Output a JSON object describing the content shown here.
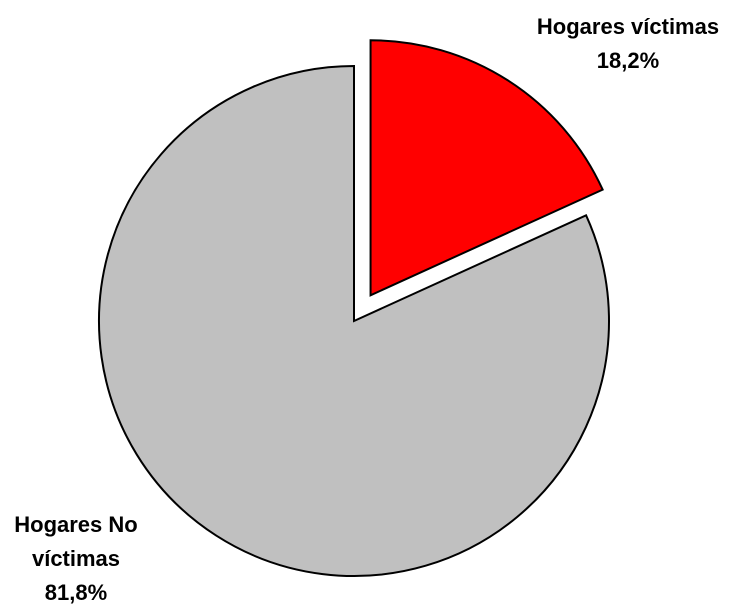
{
  "chart_data": {
    "type": "pie",
    "categories": [
      "Hogares víctimas",
      "Hogares No víctimas"
    ],
    "values": [
      18.2,
      81.8
    ],
    "value_labels": [
      "18,2%",
      "81,8%"
    ],
    "colors": [
      "#ff0000",
      "#c0c0c0"
    ],
    "explode": [
      0.12,
      0
    ]
  }
}
